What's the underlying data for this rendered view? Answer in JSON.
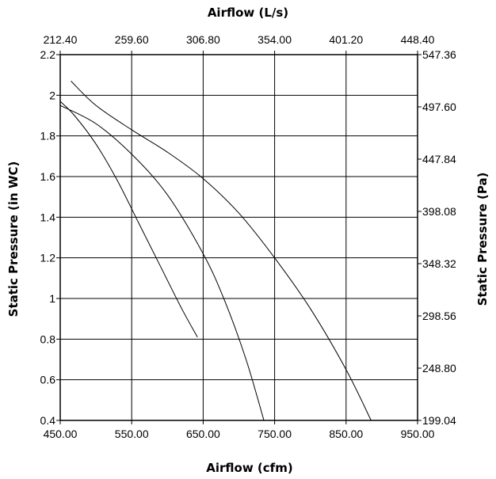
{
  "chart_data": {
    "type": "line",
    "x_bottom": {
      "label": "Airflow (cfm)",
      "range": [
        450,
        950
      ],
      "ticks": [
        "450.00",
        "550.00",
        "650.00",
        "750.00",
        "850.00",
        "950.00"
      ]
    },
    "x_top": {
      "label": "Airflow (L/s)",
      "range": [
        212.4,
        448.4
      ],
      "ticks": [
        "212.40",
        "259.60",
        "306.80",
        "354.00",
        "401.20",
        "448.40"
      ]
    },
    "y_left": {
      "label": "Static Pressure (in WC)",
      "range": [
        0.4,
        2.2
      ],
      "ticks": [
        "0.4",
        "0.6",
        "0.8",
        "1",
        "1.2",
        "1.4",
        "1.6",
        "1.8",
        "2",
        "2.2"
      ]
    },
    "y_right": {
      "label": "Static Pressure (Pa)",
      "range": [
        199.04,
        547.36
      ],
      "ticks": [
        "199.04",
        "248.80",
        "298.56",
        "348.32",
        "398.08",
        "447.84",
        "497.60",
        "547.36"
      ]
    },
    "grid": true,
    "series": [
      {
        "x": [
          450,
          470,
          500,
          530,
          560,
          590,
          620,
          642
        ],
        "y": [
          1.97,
          1.9,
          1.76,
          1.58,
          1.37,
          1.16,
          0.95,
          0.81
        ]
      },
      {
        "x": [
          450,
          500,
          550,
          600,
          650,
          680,
          710,
          735
        ],
        "y": [
          1.95,
          1.86,
          1.71,
          1.51,
          1.22,
          0.99,
          0.7,
          0.4
        ]
      },
      {
        "x": [
          465,
          500,
          550,
          600,
          650,
          700,
          750,
          800,
          850,
          885
        ],
        "y": [
          2.07,
          1.95,
          1.83,
          1.72,
          1.59,
          1.42,
          1.2,
          0.95,
          0.65,
          0.4
        ]
      }
    ]
  }
}
